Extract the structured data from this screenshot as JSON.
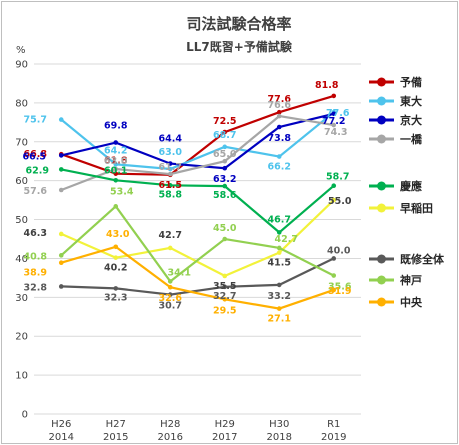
{
  "chart_data": {
    "type": "line",
    "title": "司法試験合格率",
    "subtitle": "LL7既習+予備試験",
    "ylabel": "%",
    "ylim": [
      0,
      90
    ],
    "yticks": [
      0,
      10,
      20,
      30,
      40,
      50,
      60,
      70,
      80,
      90
    ],
    "grid": true,
    "legend_position": "right",
    "categories": [
      {
        "era": "H26",
        "year": "2014"
      },
      {
        "era": "H27",
        "year": "2015"
      },
      {
        "era": "H28",
        "year": "2016"
      },
      {
        "era": "H29",
        "year": "2017"
      },
      {
        "era": "H30",
        "year": "2018"
      },
      {
        "era": "R1",
        "year": "2019"
      }
    ],
    "series": [
      {
        "name": "予備",
        "color": "#c00000",
        "values": [
          66.8,
          61.8,
          61.5,
          72.5,
          77.6,
          81.8
        ],
        "labels": [
          "66.8",
          "61.8",
          "61.5",
          "72.5",
          "77.6",
          "81.8"
        ]
      },
      {
        "name": "東大",
        "color": "#4ec3ec",
        "values": [
          75.7,
          64.2,
          63.0,
          68.7,
          66.2,
          77.6
        ],
        "labels": [
          "75.7",
          "64.2",
          "63.0",
          "68.7",
          "66.2",
          "77.6"
        ]
      },
      {
        "name": "京大",
        "color": "#0000c0",
        "values": [
          66.5,
          69.8,
          64.4,
          63.2,
          73.8,
          77.2
        ],
        "labels": [
          "66.5",
          "69.8",
          "64.4",
          "63.2",
          "73.8",
          "77.2"
        ]
      },
      {
        "name": "一橋",
        "color": "#a6a6a6",
        "values": [
          57.6,
          63.0,
          61.7,
          65.0,
          76.6,
          74.3
        ],
        "labels": [
          "57.6",
          "63.0",
          "61.7",
          "65.0",
          "76.6",
          "74.3"
        ]
      },
      {
        "name": "慶應",
        "color": "#00b050",
        "values": [
          62.9,
          60.1,
          58.8,
          58.6,
          46.7,
          58.7
        ],
        "labels": [
          "62.9",
          "60.1",
          "58.8",
          "58.6",
          "46.7",
          "58.7"
        ]
      },
      {
        "name": "早稲田",
        "color": "#f2f23a",
        "values": [
          46.3,
          40.2,
          42.7,
          35.5,
          41.5,
          55.0
        ],
        "labels": [
          "46.3",
          "40.2",
          "42.7",
          "35.5",
          "41.5",
          "55.0"
        ]
      },
      {
        "name": "既修全体",
        "color": "#595959",
        "values": [
          32.8,
          32.3,
          30.7,
          32.7,
          33.2,
          40.0
        ],
        "labels": [
          "32.8",
          "32.3",
          "30.7",
          "32.7",
          "33.2",
          "40.0"
        ]
      },
      {
        "name": "神戸",
        "color": "#92d050",
        "values": [
          40.8,
          53.4,
          34.1,
          45.0,
          42.7,
          35.6
        ],
        "labels": [
          "40.8",
          "53.4",
          "34.1",
          "45.0",
          "42.7",
          "35.6"
        ]
      },
      {
        "name": "中央",
        "color": "#ffb000",
        "values": [
          38.9,
          43.0,
          32.6,
          29.5,
          27.1,
          31.9
        ],
        "labels": [
          "38.9",
          "43.0",
          "32.6",
          "29.5",
          "27.1",
          "31.9"
        ]
      }
    ]
  }
}
